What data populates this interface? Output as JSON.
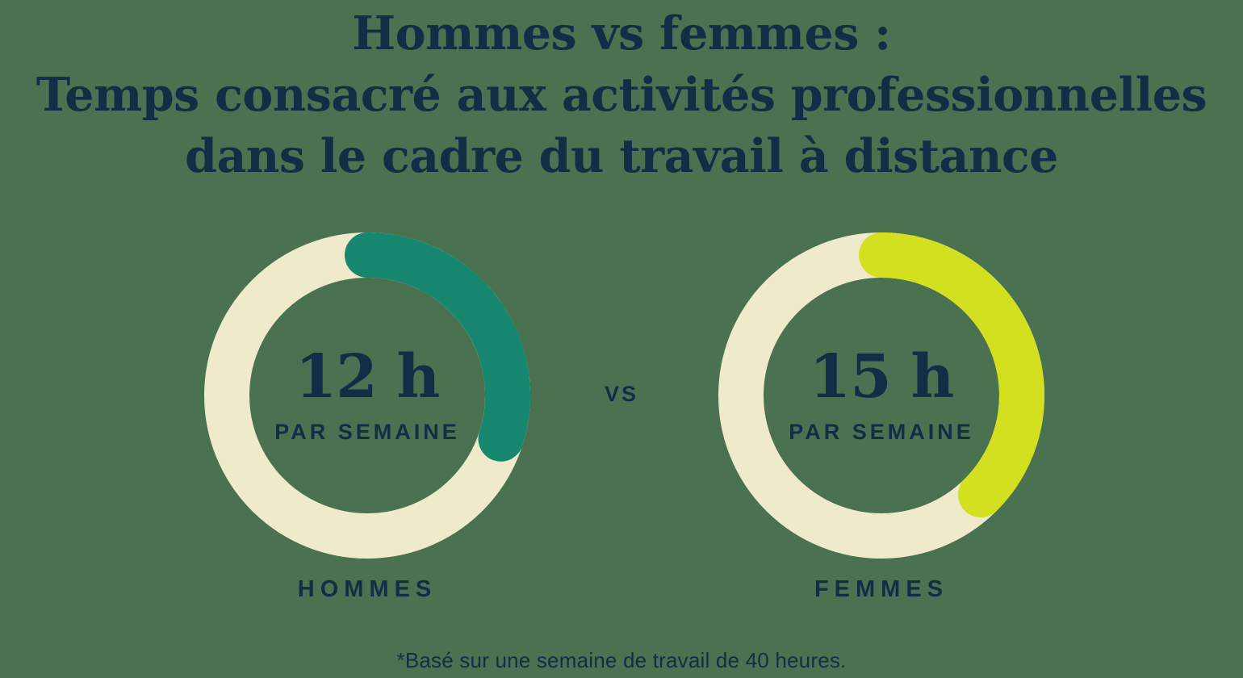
{
  "title": {
    "line1": "Hommes vs femmes :",
    "line2": "Temps consacré aux activités professionnelles",
    "line3": "dans le cadre du travail à distance"
  },
  "vs_label": "VS",
  "footnote": "*Basé sur une semaine de travail de 40 heures.",
  "colors": {
    "background": "#4A7150",
    "text_navy": "#122E47",
    "track_cream": "#EFEACC",
    "arc_teal": "#17876F",
    "arc_chartreuse": "#D2E01F"
  },
  "chart_data": [
    {
      "type": "donut",
      "group_label": "HOMMES",
      "center_value": "12 h",
      "center_unit": "PAR SEMAINE",
      "hours_per_week": 12,
      "total_hours": 40,
      "fraction": 0.3,
      "arc_degrees": 108,
      "arc_color": "#17876F",
      "track_color": "#EFEACC"
    },
    {
      "type": "donut",
      "group_label": "FEMMES",
      "center_value": "15 h",
      "center_unit": "PAR SEMAINE",
      "hours_per_week": 15,
      "total_hours": 40,
      "fraction": 0.375,
      "arc_degrees": 135,
      "arc_color": "#D2E01F",
      "track_color": "#EFEACC"
    }
  ]
}
